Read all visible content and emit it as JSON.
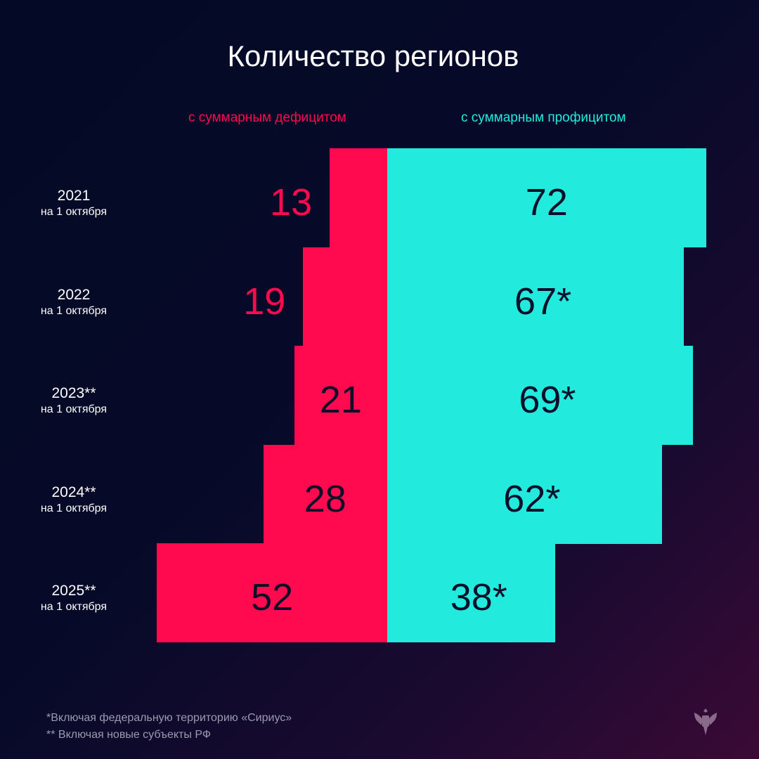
{
  "title": "Количество регионов",
  "chart_data": {
    "type": "bar",
    "orientation": "horizontal-diverging",
    "title": "Количество регионов",
    "categories": [
      {
        "year": "2021",
        "date": "на 1 октября"
      },
      {
        "year": "2022",
        "date": "на 1 октября"
      },
      {
        "year": "2023**",
        "date": "на 1 октября"
      },
      {
        "year": "2024**",
        "date": "на 1 октября"
      },
      {
        "year": "2025**",
        "date": "на 1 октября"
      }
    ],
    "series": [
      {
        "name": "с суммарным дефицитом",
        "color": "#ff0a4e",
        "values": [
          13,
          19,
          21,
          28,
          52
        ],
        "labels": [
          "13",
          "19",
          "21",
          "28",
          "52"
        ]
      },
      {
        "name": "с суммарным профицитом",
        "color": "#22ebdd",
        "values": [
          72,
          67,
          69,
          62,
          38
        ],
        "labels": [
          "72",
          "67*",
          "69*",
          "62*",
          "38*"
        ]
      }
    ]
  },
  "footnotes": [
    "*Включая федеральную территорию «Сириус»",
    "** Включая новые субъекты РФ"
  ],
  "logo": "emblem-icon"
}
